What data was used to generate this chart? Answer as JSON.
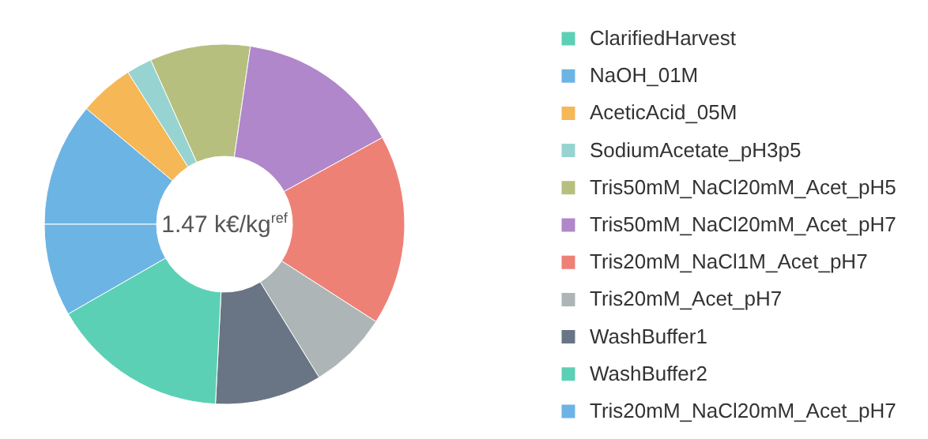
{
  "chart_data": {
    "type": "donut",
    "categories": [
      "ClarifiedHarvest",
      "NaOH_01M",
      "AceticAcid_05M",
      "SodiumAcetate_pH3p5",
      "Tris50mM_NaCl20mM_Acet_pH5",
      "Tris50mM_NaCl20mM_Acet_pH7",
      "Tris20mM_NaCl1M_Acet_pH7",
      "Tris20mM_Acet_pH7",
      "WashBuffer1",
      "WashBuffer2",
      "Tris20mM_NaCl20mM_Acet_pH7"
    ],
    "values": [
      0,
      11.1,
      4.9,
      2.3,
      9.0,
      14.7,
      17.1,
      7.1,
      9.6,
      15.9,
      8.3
    ],
    "colors": [
      "#5cd0b5",
      "#6cb4e4",
      "#f6b756",
      "#97d4d1",
      "#b6bf7e",
      "#b087ca",
      "#ee8176",
      "#adb5b6",
      "#697584",
      "#5cd0b5",
      "#6cb4e4"
    ],
    "annotations": [
      "1.47 k€/kg$^{ref}$"
    ],
    "legend": "right"
  }
}
